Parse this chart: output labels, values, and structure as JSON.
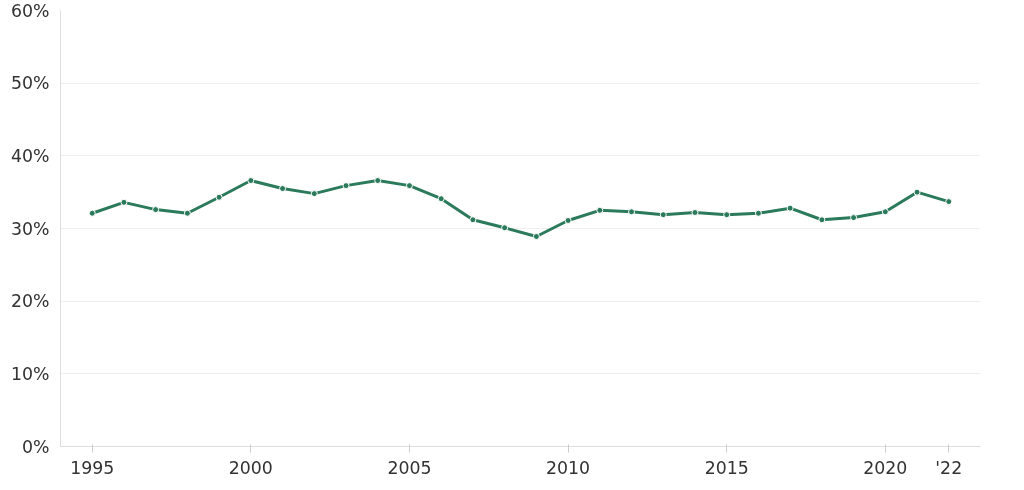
{
  "chart_data": {
    "type": "line",
    "x": [
      1995,
      1996,
      1997,
      1998,
      1999,
      2000,
      2001,
      2002,
      2003,
      2004,
      2005,
      2006,
      2007,
      2008,
      2009,
      2010,
      2011,
      2012,
      2013,
      2014,
      2015,
      2016,
      2017,
      2018,
      2019,
      2020,
      2021,
      2022
    ],
    "series": [
      {
        "color": "#2b7a5c",
        "values": [
          32.1,
          33.6,
          32.6,
          32.1,
          34.3,
          36.6,
          35.5,
          34.8,
          35.9,
          36.6,
          35.9,
          34.1,
          31.2,
          30.1,
          28.9,
          31.1,
          32.5,
          32.3,
          31.9,
          32.2,
          31.9,
          32.1,
          32.8,
          31.2,
          31.5,
          32.3,
          35.0,
          33.7
        ]
      }
    ],
    "xlim": [
      1994,
      2023
    ],
    "ylim": [
      0,
      60
    ],
    "xticks": [
      1995,
      2000,
      2005,
      2010,
      2015,
      2020,
      {
        "value": 2022,
        "label": "'22"
      }
    ],
    "yticks": [
      {
        "value": 0,
        "label": "0%"
      },
      {
        "value": 10,
        "label": "10%"
      },
      {
        "value": 20,
        "label": "20%"
      },
      {
        "value": 30,
        "label": "30%"
      },
      {
        "value": 40,
        "label": "40%"
      },
      {
        "value": 50,
        "label": "50%"
      },
      {
        "value": 60,
        "label": "60%"
      }
    ],
    "grid": "y",
    "marker": "circle",
    "line_style": "solid"
  }
}
